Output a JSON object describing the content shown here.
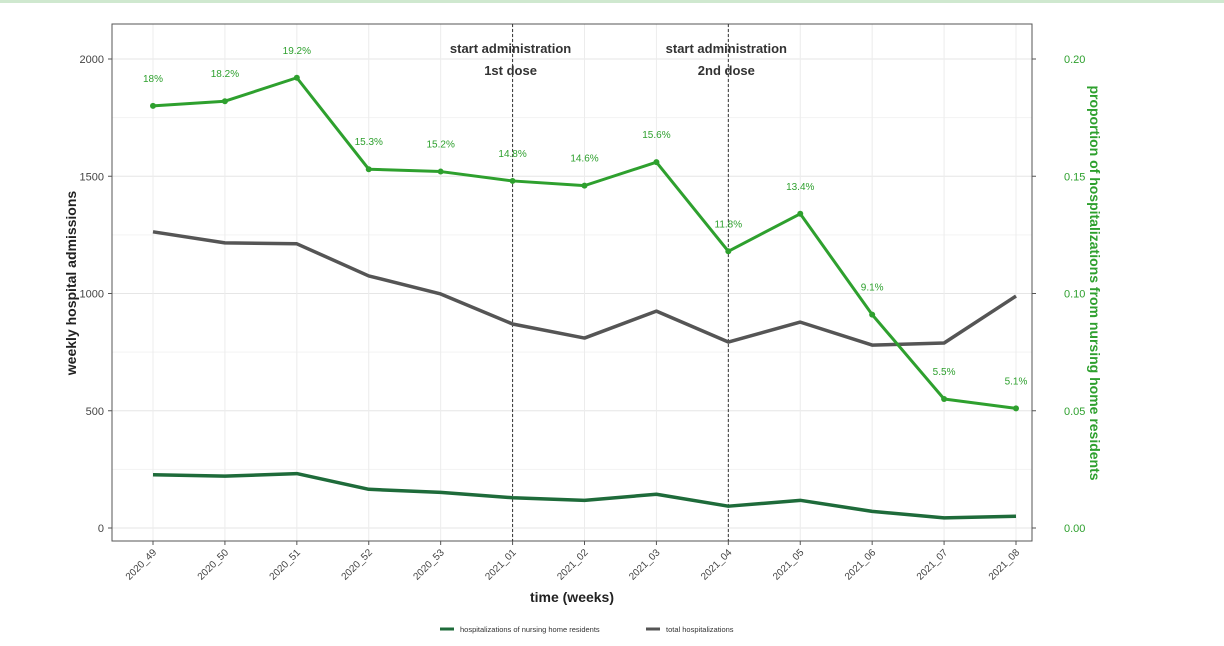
{
  "chart_data": {
    "type": "line",
    "xlabel": "time (weeks)",
    "ylabel": "weekly hospital admissions",
    "y2label": "proportion of hospitalizations from nursing home residents",
    "ylim": [
      0,
      2000
    ],
    "y2lim": [
      0,
      0.2
    ],
    "yticks": [
      "0",
      "500",
      "1000",
      "1500",
      "2000"
    ],
    "y2ticks": [
      "0.00",
      "0.05",
      "0.10",
      "0.15",
      "0.20"
    ],
    "categories": [
      "2020_49",
      "2020_50",
      "2020_51",
      "2020_52",
      "2020_53",
      "2021_01",
      "2021_02",
      "2021_03",
      "2021_04",
      "2021_05",
      "2021_06",
      "2021_07",
      "2021_08"
    ],
    "series": [
      {
        "name": "hospitalizations of nursing home residents",
        "axis": "left",
        "color": "#1e6b3a",
        "values": [
          227,
          221,
          232,
          165,
          152,
          129,
          118,
          144,
          93,
          118,
          71,
          43,
          50
        ]
      },
      {
        "name": "total hospitalizations",
        "axis": "left",
        "color": "#555555",
        "values": [
          1263,
          1216,
          1212,
          1075,
          998,
          870,
          810,
          925,
          793,
          878,
          780,
          789,
          989
        ]
      },
      {
        "axis": "right",
        "color": "#2ea02e",
        "values": [
          0.18,
          0.182,
          0.192,
          0.153,
          0.152,
          0.148,
          0.146,
          0.156,
          0.118,
          0.134,
          0.091,
          0.055,
          0.051
        ],
        "labels": [
          "18%",
          "18.2%",
          "19.2%",
          "15.3%",
          "15.2%",
          "14.8%",
          "14.6%",
          "15.6%",
          "11.8%",
          "13.4%",
          "9.1%",
          "5.5%",
          "5.1%"
        ]
      }
    ],
    "annotations": [
      {
        "at": "2021_01",
        "lines": [
          "start administration",
          "1st dose"
        ]
      },
      {
        "at": "2021_04",
        "lines": [
          "start administration",
          "2nd dose"
        ]
      }
    ],
    "grid": true,
    "legend": "bottom"
  }
}
